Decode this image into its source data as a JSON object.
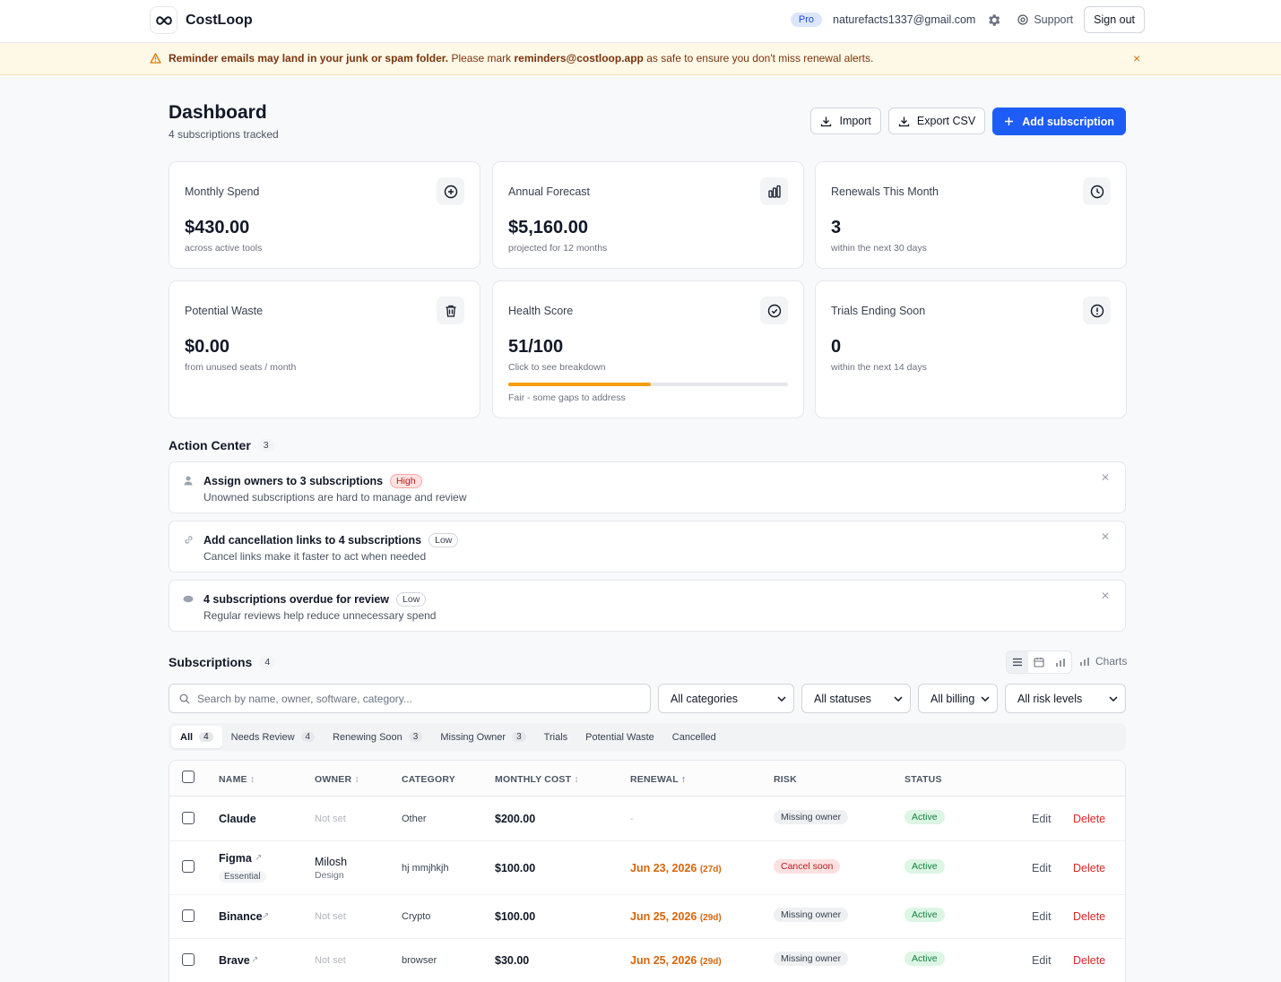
{
  "app": {
    "name": "CostLoop"
  },
  "topbar": {
    "plan": "Pro",
    "email": "naturefacts1337@gmail.com",
    "support": "Support",
    "signout": "Sign out"
  },
  "banner": {
    "bold": "Reminder emails may land in your junk or spam folder.",
    "text1": "Please mark",
    "address": "reminders@costloop.app",
    "text2": "as safe to ensure you don't miss renewal alerts.",
    "close": "×"
  },
  "header": {
    "title": "Dashboard",
    "subtitle": "4 subscriptions tracked",
    "import": "Import",
    "export": "Export CSV",
    "add": "Add subscription"
  },
  "cards": [
    {
      "title": "Monthly Spend",
      "value": "$430.00",
      "sub": "across active tools",
      "icon": "plus-circle-icon"
    },
    {
      "title": "Annual Forecast",
      "value": "$5,160.00",
      "sub": "projected for 12 months",
      "icon": "bar-chart-icon"
    },
    {
      "title": "Renewals This Month",
      "value": "3",
      "sub": "within the next 30 days",
      "icon": "clock-icon"
    },
    {
      "title": "Potential Waste",
      "value": "$0.00",
      "sub": "from unused seats / month",
      "icon": "trash-icon"
    },
    {
      "title": "Health Score",
      "value": "51/100",
      "sub": "Click to see breakdown",
      "icon": "check-circle-icon",
      "progress": 0.51,
      "note": "Fair - some gaps to address"
    },
    {
      "title": "Trials Ending Soon",
      "value": "0",
      "sub": "within the next 14 days",
      "icon": "alert-circle-icon"
    }
  ],
  "action_center": {
    "title": "Action Center",
    "count": "3",
    "items": [
      {
        "title": "Assign owners to 3 subscriptions",
        "badge": "High",
        "desc": "Unowned subscriptions are hard to manage and review",
        "icon": "user-icon"
      },
      {
        "title": "Add cancellation links to 4 subscriptions",
        "badge": "Low",
        "desc": "Cancel links make it faster to act when needed",
        "icon": "link-icon"
      },
      {
        "title": "4 subscriptions overdue for review",
        "badge": "Low",
        "desc": "Regular reviews help reduce unnecessary spend",
        "icon": "eye-icon"
      }
    ]
  },
  "subscriptions": {
    "title": "Subscriptions",
    "count": "4",
    "charts": "Charts",
    "search_placeholder": "Search by name, owner, software, category...",
    "filters": [
      "All categories",
      "All statuses",
      "All billing",
      "All risk levels"
    ],
    "tabs": [
      {
        "label": "All",
        "count": "4"
      },
      {
        "label": "Needs Review",
        "count": "4"
      },
      {
        "label": "Renewing Soon",
        "count": "3"
      },
      {
        "label": "Missing Owner",
        "count": "3"
      },
      {
        "label": "Trials",
        "count": ""
      },
      {
        "label": "Potential Waste",
        "count": ""
      },
      {
        "label": "Cancelled",
        "count": ""
      }
    ],
    "columns": [
      "NAME",
      "OWNER",
      "CATEGORY",
      "MONTHLY COST",
      "RENEWAL",
      "RISK",
      "STATUS"
    ],
    "sort_marks": {
      "name": "↕",
      "owner": "↕",
      "cost": "↕",
      "renewal": "↑"
    },
    "edit": "Edit",
    "delete": "Delete",
    "rows": [
      {
        "name": "Claude",
        "tag": "",
        "link": "",
        "owner": "Not set",
        "owner_sub": "",
        "category": "Other",
        "cost": "$200.00",
        "renewal": "-",
        "renewal_days": "",
        "risk": "Missing owner",
        "risk_kind": "gray",
        "status": "Active"
      },
      {
        "name": "Figma",
        "tag": "Essential",
        "link": "↗",
        "owner": "Milosh",
        "owner_sub": "Design",
        "category": "hj mmjhkjh",
        "cost": "$100.00",
        "renewal": "Jun 23, 2026",
        "renewal_days": "(27d)",
        "risk": "Cancel soon",
        "risk_kind": "red",
        "status": "Active"
      },
      {
        "name": "Binance",
        "tag": "",
        "link": "↗",
        "owner": "Not set",
        "owner_sub": "",
        "category": "Crypto",
        "cost": "$100.00",
        "renewal": "Jun 25, 2026",
        "renewal_days": "(29d)",
        "risk": "Missing owner",
        "risk_kind": "gray",
        "status": "Active"
      },
      {
        "name": "Brave",
        "tag": "",
        "link": "↗",
        "owner": "Not set",
        "owner_sub": "",
        "category": "browser",
        "cost": "$30.00",
        "renewal": "Jun 25, 2026",
        "renewal_days": "(29d)",
        "risk": "Missing owner",
        "risk_kind": "gray",
        "status": "Active"
      }
    ]
  },
  "colors": {
    "primary": "#1d5cf5",
    "warning_bg": "#fef8e7",
    "renewal": "#d9650a",
    "danger": "#dc2626",
    "success": "#15803d",
    "progress": "#f59e0b"
  }
}
